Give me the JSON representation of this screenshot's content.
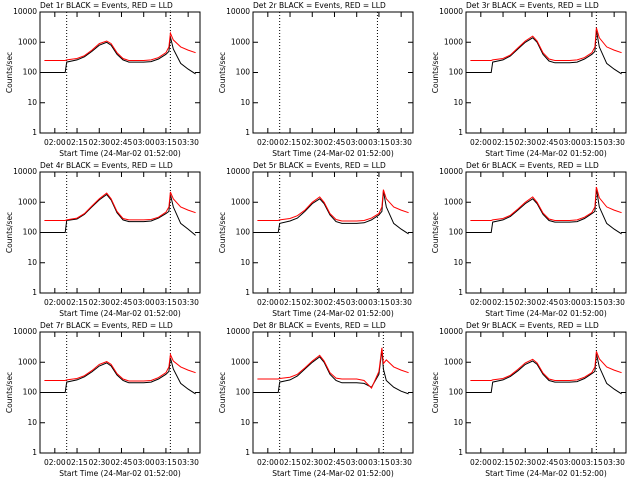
{
  "chart_data": [
    {
      "type": "line",
      "title": "Det 1r BLACK = Events, RED = LLD",
      "xlabel": "Start Time (24-Mar-02 01:52:00)",
      "ylabel": "Counts/sec",
      "log_y": true,
      "x": [
        "01:53",
        "02:00",
        "02:07",
        "02:08",
        "02:15",
        "02:20",
        "02:25",
        "02:30",
        "02:35",
        "02:38",
        "02:42",
        "02:46",
        "02:50",
        "02:55",
        "03:00",
        "03:05",
        "03:10",
        "03:15",
        "03:17",
        "03:18",
        "03:20",
        "03:25",
        "03:30",
        "03:35"
      ],
      "xlim": [
        "01:50",
        "03:38"
      ],
      "xticks": [
        "02:00",
        "02:15",
        "02:30",
        "02:45",
        "03:00",
        "03:15",
        "03:30"
      ],
      "ylim": [
        1,
        10000
      ],
      "yticks": [
        1,
        10,
        100,
        1000,
        10000
      ],
      "vlines": [
        "02:08",
        "03:18"
      ],
      "series": [
        {
          "name": "Events",
          "color": "#000000",
          "values": [
            100,
            100,
            100,
            220,
            260,
            330,
            500,
            800,
            1000,
            800,
            400,
            260,
            220,
            220,
            220,
            230,
            280,
            400,
            500,
            1500,
            600,
            200,
            130,
            90
          ]
        },
        {
          "name": "LLD",
          "color": "#ff0000",
          "values": [
            250,
            250,
            250,
            260,
            290,
            360,
            550,
            900,
            1100,
            900,
            450,
            290,
            250,
            250,
            250,
            260,
            310,
            450,
            700,
            2000,
            1200,
            700,
            550,
            450
          ]
        }
      ]
    },
    {
      "type": "line",
      "title": "Det 2r BLACK = Events, RED = LLD",
      "xlabel": "Start Time (24-Mar-02 01:52:00)",
      "ylabel": "Counts/sec",
      "log_y": true,
      "x": [],
      "xlim": [
        "01:50",
        "03:38"
      ],
      "xticks": [
        "02:00",
        "02:15",
        "02:30",
        "02:45",
        "03:00",
        "03:15",
        "03:30"
      ],
      "ylim": [
        1,
        10000
      ],
      "yticks": [
        1,
        10,
        100,
        1000,
        10000
      ],
      "vlines": [
        "02:08",
        "03:14"
      ],
      "series": []
    },
    {
      "type": "line",
      "title": "Det 3r BLACK = Events, RED = LLD",
      "xlabel": "Start Time (24-Mar-02 01:52:00)",
      "ylabel": "Counts/sec",
      "log_y": true,
      "x": [
        "01:53",
        "02:00",
        "02:07",
        "02:08",
        "02:15",
        "02:20",
        "02:25",
        "02:30",
        "02:35",
        "02:38",
        "02:42",
        "02:46",
        "02:50",
        "02:55",
        "03:00",
        "03:05",
        "03:10",
        "03:15",
        "03:17",
        "03:18",
        "03:20",
        "03:25",
        "03:30",
        "03:35"
      ],
      "xlim": [
        "01:50",
        "03:38"
      ],
      "xticks": [
        "02:00",
        "02:15",
        "02:30",
        "02:45",
        "03:00",
        "03:15",
        "03:30"
      ],
      "ylim": [
        1,
        10000
      ],
      "yticks": [
        1,
        10,
        100,
        1000,
        10000
      ],
      "vlines": [
        "03:18"
      ],
      "series": [
        {
          "name": "Events",
          "color": "#000000",
          "values": [
            100,
            100,
            100,
            220,
            260,
            350,
            600,
            1000,
            1400,
            1000,
            400,
            240,
            210,
            210,
            210,
            220,
            280,
            400,
            500,
            2500,
            700,
            200,
            130,
            90
          ]
        },
        {
          "name": "LLD",
          "color": "#ff0000",
          "values": [
            250,
            250,
            250,
            260,
            290,
            380,
            650,
            1100,
            1600,
            1100,
            450,
            280,
            250,
            250,
            250,
            260,
            310,
            450,
            700,
            3000,
            1400,
            700,
            550,
            450
          ]
        }
      ]
    },
    {
      "type": "line",
      "title": "Det 4r BLACK = Events, RED = LLD",
      "xlabel": "Start Time (24-Mar-02 01:52:00)",
      "ylabel": "Counts/sec",
      "log_y": true,
      "x": [
        "01:53",
        "02:00",
        "02:07",
        "02:08",
        "02:15",
        "02:20",
        "02:25",
        "02:30",
        "02:35",
        "02:38",
        "02:42",
        "02:46",
        "02:50",
        "02:55",
        "03:00",
        "03:05",
        "03:10",
        "03:15",
        "03:17",
        "03:18",
        "03:20",
        "03:25",
        "03:30",
        "03:35"
      ],
      "xlim": [
        "01:50",
        "03:38"
      ],
      "xticks": [
        "02:00",
        "02:15",
        "02:30",
        "02:45",
        "03:00",
        "03:15",
        "03:30"
      ],
      "ylim": [
        1,
        10000
      ],
      "yticks": [
        1,
        10,
        100,
        1000,
        10000
      ],
      "vlines": [
        "02:08",
        "03:18"
      ],
      "series": [
        {
          "name": "Events",
          "color": "#000000",
          "values": [
            100,
            100,
            100,
            250,
            280,
            400,
            700,
            1200,
            1800,
            1200,
            450,
            260,
            230,
            230,
            230,
            240,
            300,
            420,
            500,
            1800,
            700,
            200,
            130,
            80
          ]
        },
        {
          "name": "LLD",
          "color": "#ff0000",
          "values": [
            250,
            250,
            250,
            260,
            300,
            420,
            750,
            1300,
            2000,
            1300,
            500,
            290,
            260,
            260,
            260,
            270,
            320,
            470,
            700,
            2200,
            1300,
            700,
            550,
            450
          ]
        }
      ]
    },
    {
      "type": "line",
      "title": "Det 5r BLACK = Events, RED = LLD",
      "xlabel": "Start Time (24-Mar-02 01:52:00)",
      "ylabel": "Counts/sec",
      "log_y": true,
      "x": [
        "01:53",
        "02:00",
        "02:07",
        "02:08",
        "02:15",
        "02:20",
        "02:25",
        "02:30",
        "02:35",
        "02:38",
        "02:42",
        "02:46",
        "02:50",
        "02:55",
        "03:00",
        "03:05",
        "03:10",
        "03:15",
        "03:17",
        "03:18",
        "03:20",
        "03:25",
        "03:30",
        "03:35"
      ],
      "xlim": [
        "01:50",
        "03:38"
      ],
      "xticks": [
        "02:00",
        "02:15",
        "02:30",
        "02:45",
        "03:00",
        "03:15",
        "03:30"
      ],
      "ylim": [
        1,
        10000
      ],
      "yticks": [
        1,
        10,
        100,
        1000,
        10000
      ],
      "vlines": [
        "02:08",
        "03:14"
      ],
      "series": [
        {
          "name": "Events",
          "color": "#000000",
          "values": [
            100,
            100,
            100,
            200,
            240,
            300,
            500,
            900,
            1300,
            900,
            380,
            230,
            200,
            200,
            200,
            210,
            260,
            380,
            500,
            2300,
            700,
            200,
            130,
            90
          ]
        },
        {
          "name": "LLD",
          "color": "#ff0000",
          "values": [
            250,
            250,
            250,
            260,
            290,
            360,
            550,
            1000,
            1500,
            1000,
            420,
            270,
            240,
            240,
            240,
            250,
            300,
            420,
            700,
            2600,
            1300,
            700,
            550,
            450
          ]
        }
      ]
    },
    {
      "type": "line",
      "title": "Det 6r BLACK = Events, RED = LLD",
      "xlabel": "Start Time (24-Mar-02 01:52:00)",
      "ylabel": "Counts/sec",
      "log_y": true,
      "x": [
        "01:53",
        "02:00",
        "02:07",
        "02:08",
        "02:15",
        "02:20",
        "02:25",
        "02:30",
        "02:35",
        "02:38",
        "02:42",
        "02:46",
        "02:50",
        "02:55",
        "03:00",
        "03:05",
        "03:10",
        "03:15",
        "03:17",
        "03:18",
        "03:20",
        "03:25",
        "03:30",
        "03:35"
      ],
      "xlim": [
        "01:50",
        "03:38"
      ],
      "xticks": [
        "02:00",
        "02:15",
        "02:30",
        "02:45",
        "03:00",
        "03:15",
        "03:30"
      ],
      "ylim": [
        1,
        10000
      ],
      "yticks": [
        1,
        10,
        100,
        1000,
        10000
      ],
      "vlines": [
        "03:18"
      ],
      "series": [
        {
          "name": "Events",
          "color": "#000000",
          "values": [
            100,
            100,
            100,
            220,
            260,
            340,
            550,
            900,
            1300,
            900,
            400,
            250,
            220,
            220,
            220,
            230,
            290,
            420,
            500,
            2800,
            700,
            200,
            130,
            90
          ]
        },
        {
          "name": "LLD",
          "color": "#ff0000",
          "values": [
            250,
            250,
            250,
            260,
            290,
            370,
            600,
            1000,
            1500,
            1000,
            440,
            280,
            250,
            250,
            250,
            260,
            320,
            460,
            700,
            3200,
            1400,
            700,
            550,
            450
          ]
        }
      ]
    },
    {
      "type": "line",
      "title": "Det 7r BLACK = Events, RED = LLD",
      "xlabel": "Start Time (24-Mar-02 01:52:00)",
      "ylabel": "Counts/sec",
      "log_y": true,
      "x": [
        "01:53",
        "02:00",
        "02:07",
        "02:08",
        "02:15",
        "02:20",
        "02:25",
        "02:30",
        "02:35",
        "02:38",
        "02:42",
        "02:46",
        "02:50",
        "02:55",
        "03:00",
        "03:05",
        "03:10",
        "03:15",
        "03:17",
        "03:18",
        "03:20",
        "03:25",
        "03:30",
        "03:35"
      ],
      "xlim": [
        "01:50",
        "03:38"
      ],
      "xticks": [
        "02:00",
        "02:15",
        "02:30",
        "02:45",
        "03:00",
        "03:15",
        "03:30"
      ],
      "ylim": [
        1,
        10000
      ],
      "yticks": [
        1,
        10,
        100,
        1000,
        10000
      ],
      "vlines": [
        "02:08",
        "03:18"
      ],
      "series": [
        {
          "name": "Events",
          "color": "#000000",
          "values": [
            100,
            100,
            100,
            220,
            260,
            330,
            480,
            750,
            950,
            750,
            380,
            250,
            210,
            210,
            210,
            220,
            280,
            400,
            500,
            1400,
            600,
            200,
            130,
            90
          ]
        },
        {
          "name": "LLD",
          "color": "#ff0000",
          "values": [
            250,
            250,
            250,
            260,
            290,
            360,
            530,
            850,
            1050,
            850,
            420,
            280,
            240,
            240,
            240,
            250,
            310,
            450,
            700,
            1800,
            1100,
            700,
            550,
            450
          ]
        }
      ]
    },
    {
      "type": "line",
      "title": "Det 8r BLACK = Events, RED = LLD",
      "xlabel": "Start Time (24-Mar-02 01:52:00)",
      "ylabel": "Counts/sec",
      "log_y": true,
      "x": [
        "01:53",
        "02:00",
        "02:07",
        "02:08",
        "02:15",
        "02:20",
        "02:25",
        "02:30",
        "02:35",
        "02:38",
        "02:42",
        "02:46",
        "02:50",
        "02:55",
        "03:00",
        "03:05",
        "03:10",
        "03:15",
        "03:17",
        "03:18",
        "03:20",
        "03:25",
        "03:30",
        "03:35"
      ],
      "xlim": [
        "01:50",
        "03:38"
      ],
      "xticks": [
        "02:00",
        "02:15",
        "02:30",
        "02:45",
        "03:00",
        "03:15",
        "03:30"
      ],
      "ylim": [
        1,
        10000
      ],
      "yticks": [
        1,
        10,
        100,
        1000,
        10000
      ],
      "vlines": [
        "02:08",
        "03:18"
      ],
      "series": [
        {
          "name": "Events",
          "color": "#000000",
          "values": [
            100,
            100,
            100,
            220,
            260,
            350,
            600,
            1000,
            1500,
            1000,
            400,
            250,
            210,
            210,
            210,
            200,
            150,
            400,
            2500,
            600,
            250,
            150,
            110,
            90
          ]
        },
        {
          "name": "LLD",
          "color": "#ff0000",
          "values": [
            280,
            280,
            280,
            290,
            320,
            400,
            650,
            1100,
            1700,
            1100,
            450,
            300,
            280,
            280,
            280,
            250,
            140,
            500,
            3000,
            900,
            1200,
            700,
            550,
            450
          ]
        }
      ]
    },
    {
      "type": "line",
      "title": "Det 9r BLACK = Events, RED = LLD",
      "xlabel": "Start Time (24-Mar-02 01:52:00)",
      "ylabel": "Counts/sec",
      "log_y": true,
      "x": [
        "01:53",
        "02:00",
        "02:07",
        "02:08",
        "02:15",
        "02:20",
        "02:25",
        "02:30",
        "02:35",
        "02:38",
        "02:42",
        "02:46",
        "02:50",
        "02:55",
        "03:00",
        "03:05",
        "03:10",
        "03:15",
        "03:17",
        "03:18",
        "03:20",
        "03:25",
        "03:30",
        "03:35"
      ],
      "xlim": [
        "01:50",
        "03:38"
      ],
      "xticks": [
        "02:00",
        "02:15",
        "02:30",
        "02:45",
        "03:00",
        "03:15",
        "03:30"
      ],
      "ylim": [
        1,
        10000
      ],
      "yticks": [
        1,
        10,
        100,
        1000,
        10000
      ],
      "vlines": [
        "03:18"
      ],
      "series": [
        {
          "name": "Events",
          "color": "#000000",
          "values": [
            100,
            100,
            100,
            220,
            260,
            340,
            520,
            850,
            1100,
            850,
            400,
            250,
            220,
            220,
            220,
            230,
            290,
            420,
            500,
            1900,
            700,
            200,
            130,
            90
          ]
        },
        {
          "name": "LLD",
          "color": "#ff0000",
          "values": [
            250,
            250,
            250,
            260,
            290,
            370,
            580,
            950,
            1250,
            950,
            440,
            280,
            250,
            250,
            250,
            260,
            320,
            460,
            700,
            2300,
            1300,
            700,
            550,
            450
          ]
        }
      ]
    }
  ]
}
